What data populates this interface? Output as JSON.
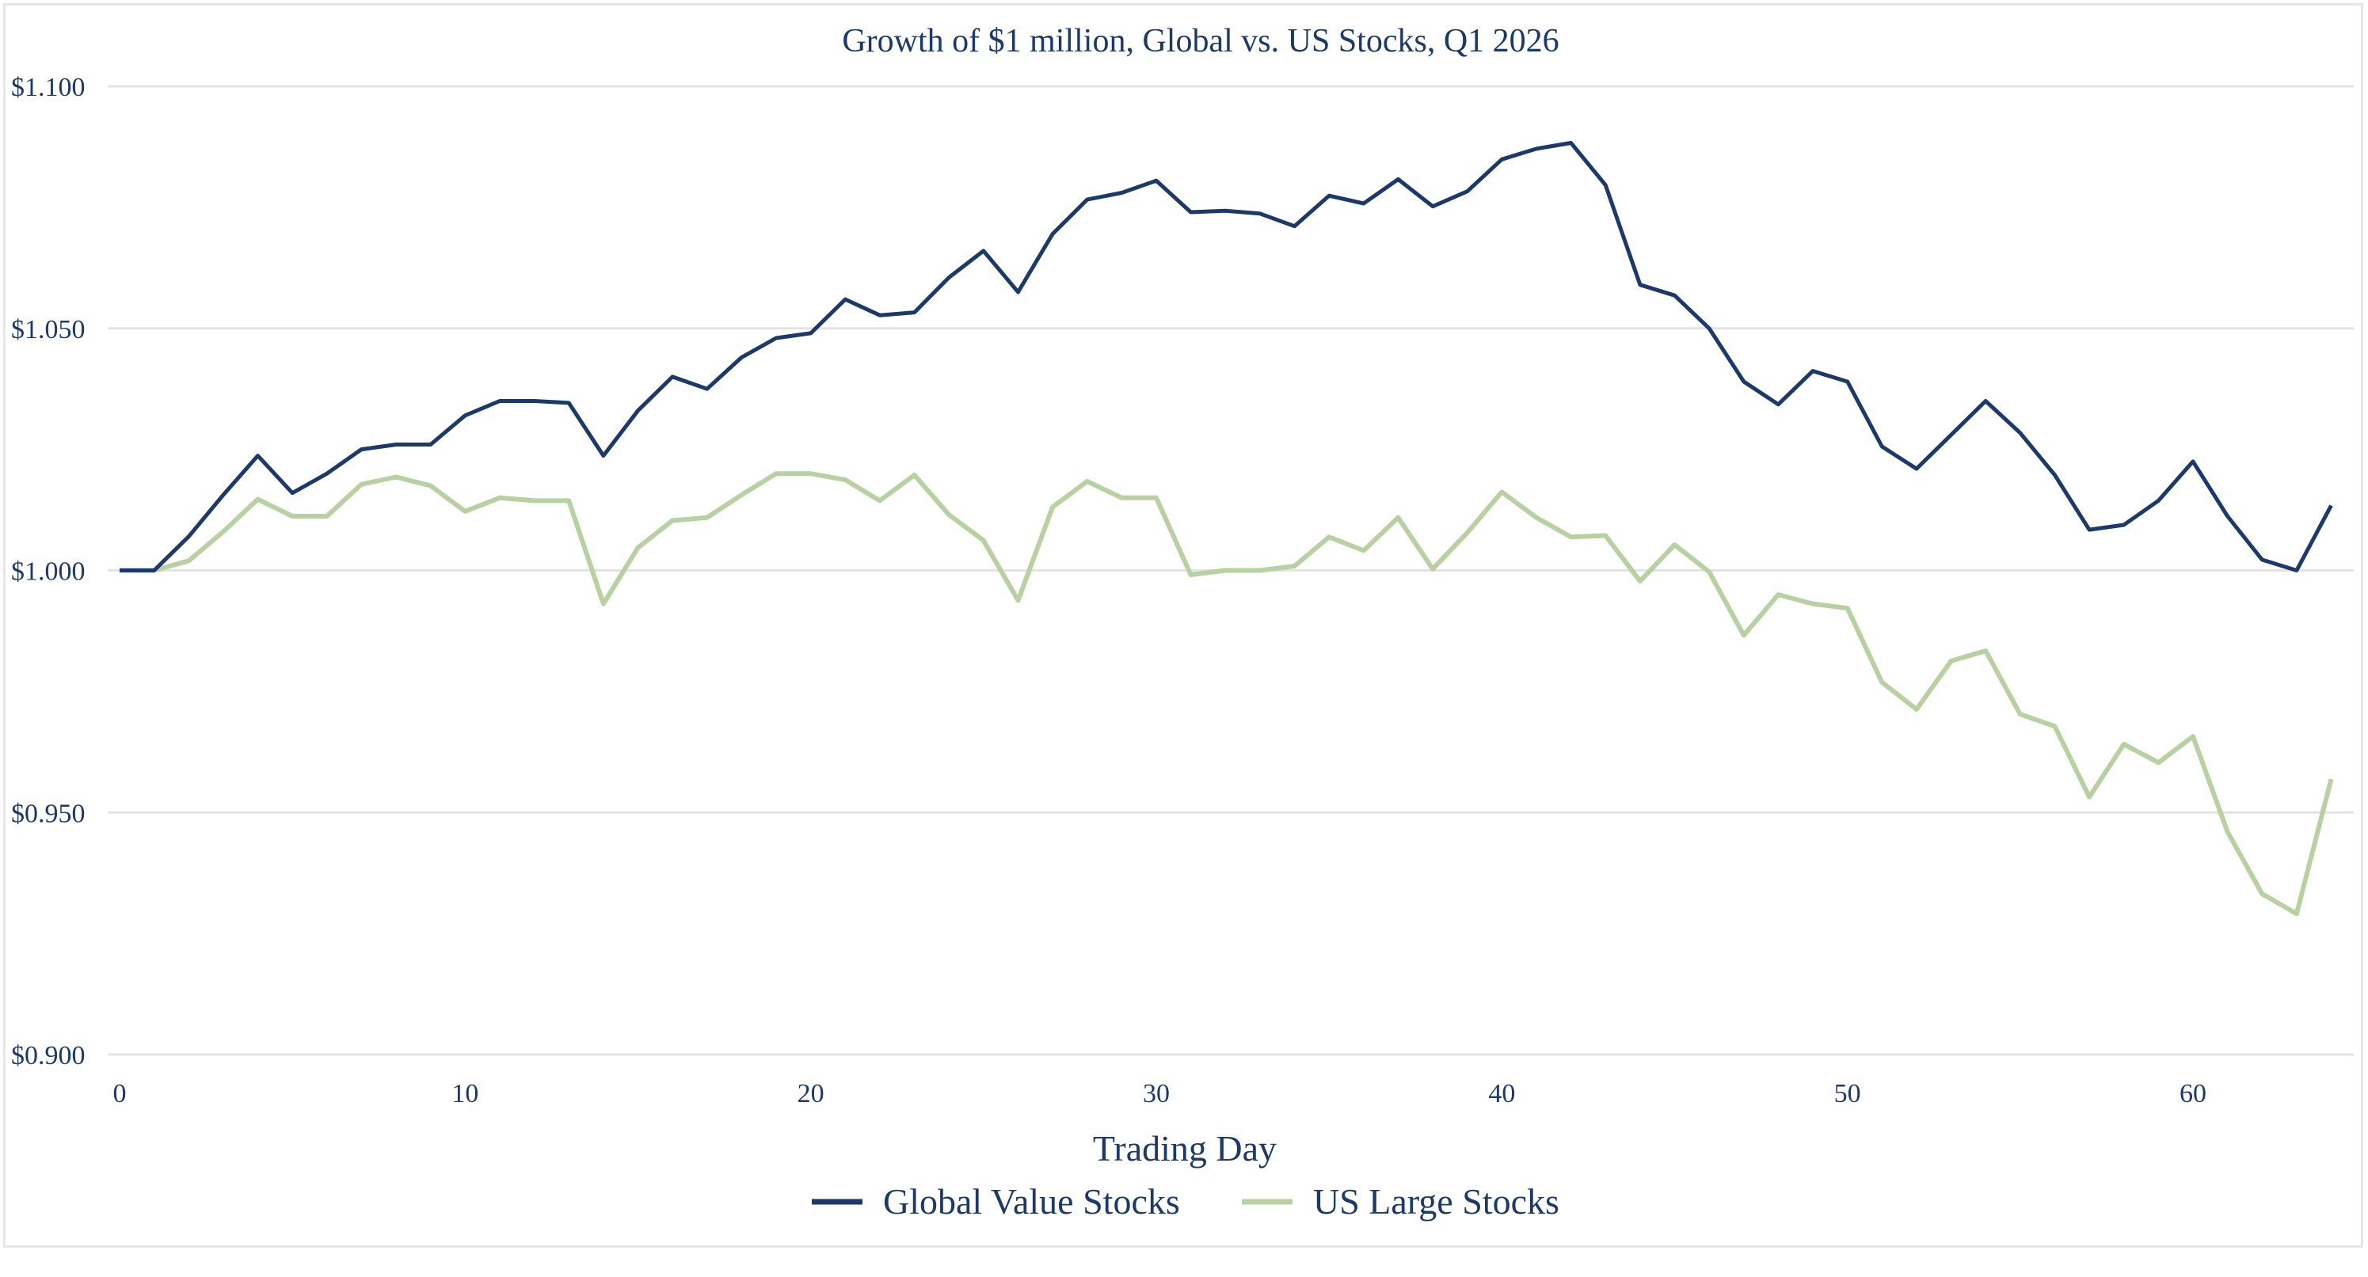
{
  "chart_data": {
    "type": "line",
    "title": "Growth of $1 million, Global vs. US Stocks, Q1 2026",
    "xlabel": "Trading Day",
    "ylabel": "",
    "xlim": [
      0,
      64
    ],
    "ylim": [
      0.9,
      1.1
    ],
    "x_ticks": [
      0,
      10,
      20,
      30,
      40,
      50,
      60
    ],
    "x_tick_labels": [
      "0",
      "10",
      "20",
      "30",
      "40",
      "50",
      "60"
    ],
    "y_ticks": [
      0.9,
      0.95,
      1.0,
      1.05,
      1.1
    ],
    "y_tick_labels": [
      "$0.900",
      "$0.950",
      "$1.000",
      "$1.050",
      "$1.100"
    ],
    "grid": "horizontal",
    "legend_position": "bottom-center",
    "series": [
      {
        "name": "Global Value Stocks",
        "color": "#1b3a6b",
        "values": [
          1.0,
          1.0,
          1.007,
          1.0156,
          1.0237,
          1.016,
          1.02,
          1.025,
          1.026,
          1.026,
          1.032,
          1.035,
          1.035,
          1.0346,
          1.0237,
          1.033,
          1.04,
          1.0375,
          1.044,
          1.048,
          1.049,
          1.056,
          1.0527,
          1.0533,
          1.0605,
          1.066,
          1.0575,
          1.0695,
          1.0766,
          1.078,
          1.0805,
          1.074,
          1.0743,
          1.0737,
          1.0711,
          1.0774,
          1.0758,
          1.0808,
          1.0752,
          1.0783,
          1.0849,
          1.0871,
          1.0883,
          1.0796,
          1.059,
          1.0568,
          1.05,
          1.039,
          1.0343,
          1.0412,
          1.039,
          1.0256,
          1.021,
          1.028,
          1.035,
          1.0284,
          1.0197,
          1.0084,
          1.0094,
          1.0144,
          1.0225,
          1.0112,
          1.0022,
          1.0,
          1.0134
        ]
      },
      {
        "name": "US Large Stocks",
        "color": "#b8d1a0",
        "values": [
          1.0,
          1.0,
          1.002,
          1.008,
          1.0147,
          1.0112,
          1.0112,
          1.0178,
          1.0193,
          1.0175,
          1.0122,
          1.015,
          1.0144,
          1.0144,
          0.9931,
          1.0047,
          1.0103,
          1.0109,
          1.0156,
          1.02,
          1.02,
          1.0187,
          1.0144,
          1.0197,
          1.0115,
          1.0062,
          0.9938,
          1.0131,
          1.0184,
          1.015,
          1.015,
          0.9991,
          1.0,
          1.0,
          1.0009,
          1.0069,
          1.0041,
          1.0109,
          1.0003,
          1.0078,
          1.0162,
          1.0109,
          1.0069,
          1.0072,
          0.9978,
          1.0053,
          0.9997,
          0.9866,
          0.995,
          0.9931,
          0.9922,
          0.9769,
          0.9713,
          0.9813,
          0.9834,
          0.9703,
          0.9678,
          0.9532,
          0.9641,
          0.9603,
          0.9657,
          0.946,
          0.9332,
          0.9291,
          0.9569
        ]
      }
    ]
  }
}
